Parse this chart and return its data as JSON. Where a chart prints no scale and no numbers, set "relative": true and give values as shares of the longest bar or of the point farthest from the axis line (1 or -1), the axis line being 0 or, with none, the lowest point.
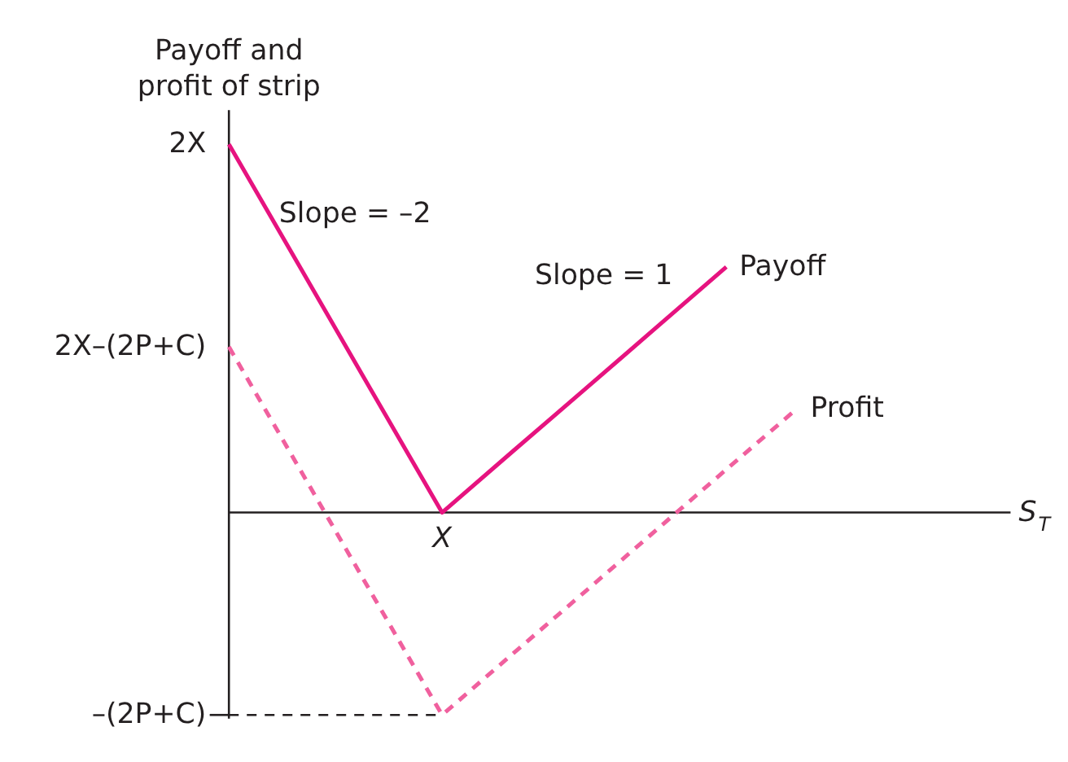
{
  "chart_data": {
    "type": "line",
    "relative": true,
    "ylabel": "Payoff and\nprofit of strip",
    "xlabel": "S$_{T}$",
    "categories": [
      null,
      null,
      null,
      null,
      null,
      null,
      null,
      null,
      null,
      null,
      null,
      null
    ],
    "series": [
      {
        "name": "Payoff",
        "color": "#e6137f",
        "values": [
          1,
          0.667,
          0.333,
          0,
          0.167,
          0.333,
          0.5,
          0.667,
          null,
          null,
          null,
          null
        ],
        "line_style": "solid"
      },
      {
        "name": "Profit",
        "color": "#f0609e",
        "values": [
          0.45,
          0.117,
          -0.217,
          -0.55,
          -0.383,
          -0.217,
          -0.05,
          0.117,
          0.283,
          null,
          null,
          null
        ],
        "line_style": "dashed"
      },
      {
        "color": "#231f20",
        "values": [
          -0.55,
          -0.55,
          -0.55,
          -0.55,
          null,
          null,
          null,
          null,
          null,
          null,
          null,
          null
        ],
        "line_style": "dashed"
      }
    ],
    "annotations": [
      "2X",
      "2X–(2P+C)",
      "–(2P+C)",
      {
        "text": "X",
        "y": 0
      },
      "Slope = –2",
      "Slope = 1"
    ],
    "marker": "none"
  }
}
